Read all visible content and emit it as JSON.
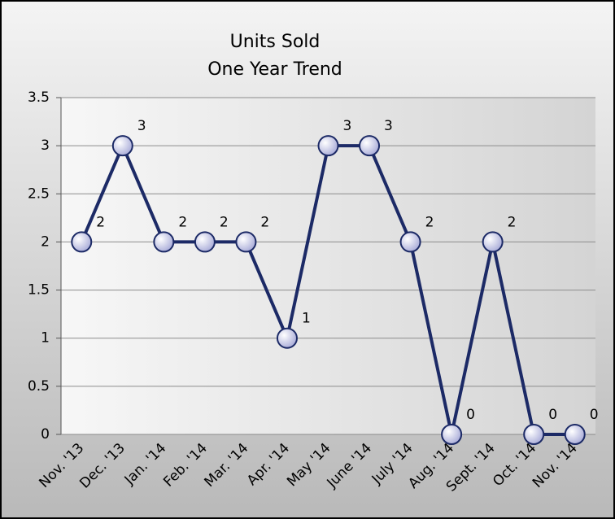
{
  "chart_data": {
    "type": "line",
    "title": "Units Sold",
    "subtitle": "One Year Trend",
    "categories": [
      "Nov. '13",
      "Dec. '13",
      "Jan. '14",
      "Feb. '14",
      "Mar. '14",
      "Apr. '14",
      "May '14",
      "June '14",
      "July '14",
      "Aug. '14",
      "Sept. '14",
      "Oct. '14",
      "Nov. '14"
    ],
    "values": [
      2,
      3,
      2,
      2,
      2,
      1,
      3,
      3,
      2,
      0,
      2,
      0,
      0
    ],
    "color": "#1c2a66",
    "ylim": [
      0,
      3.5
    ],
    "yticks": [
      0,
      0.5,
      1,
      1.5,
      2,
      2.5,
      3,
      3.5
    ],
    "grid": true
  }
}
